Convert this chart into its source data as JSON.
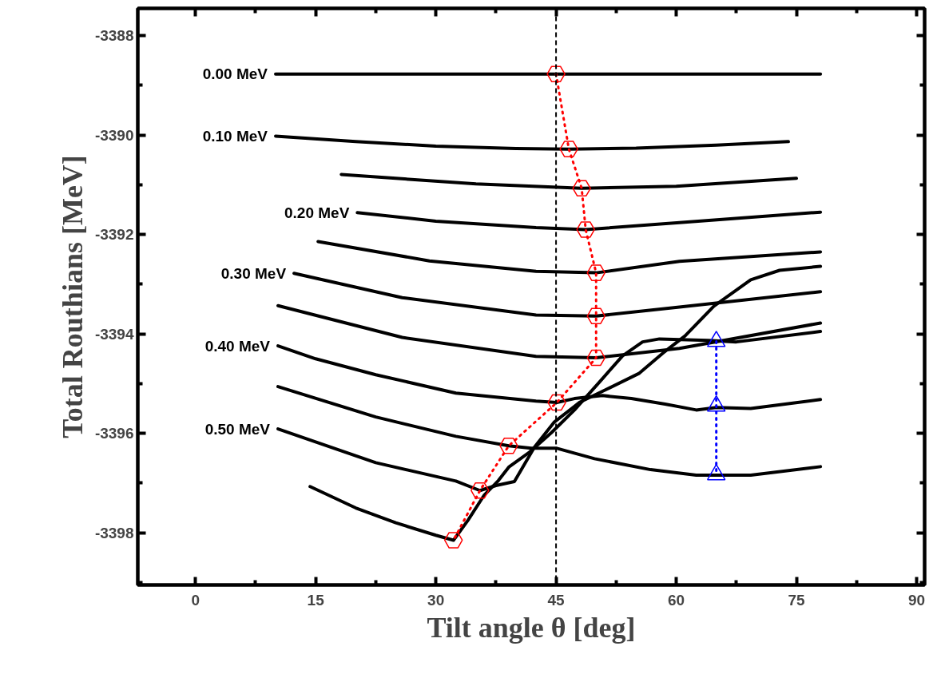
{
  "chart_data": {
    "type": "line",
    "xlabel": "Tilt angle θ [deg]",
    "ylabel": "Total Routhians [MeV]",
    "xlim": [
      -7.2,
      91
    ],
    "ylim": [
      -3399.05,
      -3387.45
    ],
    "xticks": [
      0,
      15,
      30,
      45,
      60,
      75,
      90
    ],
    "yticks": [
      -3398,
      -3396,
      -3394,
      -3392,
      -3390,
      -3388
    ],
    "grid": false,
    "line_style": "solid",
    "marker": "none",
    "ref_lines": [
      {
        "axis": "x",
        "value": 45,
        "color": "#000000",
        "line_style": "dashed"
      }
    ],
    "series": [
      {
        "name": "0.00 MeV",
        "color": "#000000",
        "x": [
          10,
          45,
          78
        ],
        "values": [
          -3388.77,
          -3388.77,
          -3388.77
        ]
      },
      {
        "name": "0.10 MeV",
        "color": "#000000",
        "x": [
          10,
          20,
          30,
          40,
          46.6,
          55,
          65,
          74
        ],
        "values": [
          -3390.02,
          -3390.13,
          -3390.22,
          -3390.27,
          -3390.28,
          -3390.26,
          -3390.2,
          -3390.13
        ]
      },
      {
        "color": "#000000",
        "x": [
          18.2,
          25,
          35,
          48.2,
          60,
          75
        ],
        "values": [
          -3390.79,
          -3390.87,
          -3390.98,
          -3391.07,
          -3391.03,
          -3390.87
        ]
      },
      {
        "name": "0.20 MeV",
        "color": "#000000",
        "x": [
          20.2,
          30,
          42.5,
          48.7,
          60.4,
          78
        ],
        "values": [
          -3391.56,
          -3391.73,
          -3391.86,
          -3391.9,
          -3391.76,
          -3391.55
        ]
      },
      {
        "color": "#000000",
        "x": [
          15.3,
          29.2,
          42.5,
          50,
          60.4,
          78
        ],
        "values": [
          -3392.14,
          -3392.53,
          -3392.74,
          -3392.77,
          -3392.54,
          -3392.35
        ]
      },
      {
        "name": "0.30 MeV",
        "color": "#000000",
        "x": [
          12.3,
          25.8,
          42.5,
          50,
          60.4,
          78
        ],
        "values": [
          -3392.78,
          -3393.27,
          -3393.62,
          -3393.64,
          -3393.46,
          -3393.15
        ]
      },
      {
        "color": "#000000",
        "x": [
          10.3,
          25.8,
          42.5,
          50,
          60.4,
          78
        ],
        "values": [
          -3393.43,
          -3394.07,
          -3394.45,
          -3394.48,
          -3394.29,
          -3393.78
        ]
      },
      {
        "name": "0.40 MeV",
        "color": "#000000",
        "x": [
          10.3,
          15,
          22.5,
          32.5,
          42.5,
          45.1,
          47.3,
          50.8,
          54.4,
          58.6,
          62.5,
          65,
          69.3,
          78
        ],
        "values": [
          -3394.24,
          -3394.5,
          -3394.82,
          -3395.19,
          -3395.35,
          -3395.38,
          -3395.3,
          -3395.24,
          -3395.3,
          -3395.41,
          -3395.53,
          -3395.48,
          -3395.5,
          -3395.32
        ]
      },
      {
        "color": "#000000",
        "x": [
          10.3,
          22.5,
          32.5,
          39.1,
          41.9,
          45.1,
          49.8,
          56.8,
          62.5,
          69.3,
          78
        ],
        "values": [
          -3395.06,
          -3395.67,
          -3396.06,
          -3396.25,
          -3396.3,
          -3396.3,
          -3396.51,
          -3396.73,
          -3396.84,
          -3396.84,
          -3396.67
        ]
      },
      {
        "name": "0.50 MeV",
        "color": "#000000",
        "x": [
          10.3,
          22.5,
          32.5,
          35.5,
          37.5,
          39.8,
          42.3,
          44.8,
          48,
          51.1,
          55.4,
          58.3,
          61.1,
          64.7,
          69.3,
          72.9,
          78
        ],
        "values": [
          -3395.91,
          -3396.59,
          -3396.96,
          -3397.15,
          -3397.05,
          -3396.97,
          -3396.28,
          -3395.77,
          -3395.37,
          -3395.13,
          -3394.79,
          -3394.39,
          -3394.04,
          -3393.44,
          -3392.91,
          -3392.72,
          -3392.64
        ]
      },
      {
        "color": "#000000",
        "x": [
          14.3,
          20,
          25,
          30,
          32.2,
          34,
          36,
          37.8,
          39.1,
          41.6,
          44.4,
          47.3,
          50.4,
          53.3,
          55.8,
          57.9,
          64,
          67.5,
          78
        ],
        "values": [
          -3397.07,
          -3397.5,
          -3397.8,
          -3398.05,
          -3398.15,
          -3397.75,
          -3397.25,
          -3396.95,
          -3396.68,
          -3396.39,
          -3395.99,
          -3395.53,
          -3394.97,
          -3394.44,
          -3394.16,
          -3394.1,
          -3394.13,
          -3394.16,
          -3393.95
        ]
      },
      {
        "color": "#ff0000",
        "line_style": "dotted",
        "marker": "circle",
        "x": [
          45,
          46.6,
          48.2,
          48.7,
          50,
          50,
          50,
          45.1,
          39.1,
          35.5,
          32.2
        ],
        "values": [
          -3388.77,
          -3390.28,
          -3391.07,
          -3391.9,
          -3392.77,
          -3393.64,
          -3394.48,
          -3395.38,
          -3396.25,
          -3397.15,
          -3398.15
        ]
      },
      {
        "color": "#0000ff",
        "line_style": "dotted",
        "marker": "triangle",
        "x": [
          65,
          65,
          65
        ],
        "values": [
          -3394.15,
          -3395.45,
          -3396.83
        ]
      }
    ]
  }
}
